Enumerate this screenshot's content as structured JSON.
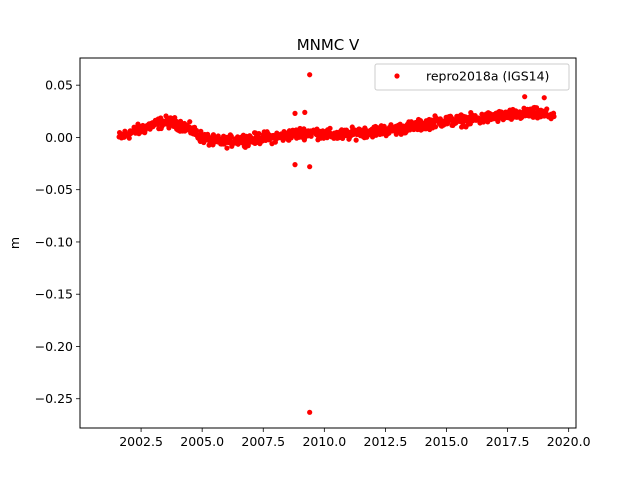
{
  "chart_data": {
    "type": "scatter",
    "title": "MNMC V",
    "xlabel": "",
    "ylabel": "m",
    "xlim": [
      2000.0,
      2020.3
    ],
    "ylim": [
      -0.278,
      0.076
    ],
    "x_ticks": [
      2002.5,
      2005.0,
      2007.5,
      2010.0,
      2012.5,
      2015.0,
      2017.5,
      2020.0
    ],
    "x_tick_labels": [
      "2002.5",
      "2005.0",
      "2007.5",
      "2010.0",
      "2012.5",
      "2015.0",
      "2017.5",
      "2020.0"
    ],
    "y_ticks": [
      0.05,
      0.0,
      -0.05,
      -0.1,
      -0.15,
      -0.2,
      -0.25
    ],
    "y_tick_labels": [
      "0.05",
      "0.00",
      "−0.05",
      "−0.10",
      "−0.15",
      "−0.20",
      "−0.25"
    ],
    "grid": false,
    "legend": {
      "position": "top-right",
      "entries": [
        "repro2018a (IGS14)"
      ]
    },
    "series": [
      {
        "name": "repro2018a (IGS14)",
        "color": "#ff0000",
        "trend": {
          "x": [
            2001.6,
            2002.0,
            2002.5,
            2003.0,
            2003.5,
            2004.0,
            2004.5,
            2005.0,
            2005.5,
            2006.0,
            2006.5,
            2007.0,
            2007.5,
            2008.0,
            2008.5,
            2009.0,
            2009.5,
            2010.0,
            2010.5,
            2011.0,
            2011.5,
            2012.0,
            2012.5,
            2013.0,
            2013.5,
            2014.0,
            2014.5,
            2015.0,
            2015.5,
            2016.0,
            2016.5,
            2017.0,
            2017.5,
            2018.0,
            2018.5,
            2019.0,
            2019.4
          ],
          "y": [
            0.0,
            0.004,
            0.008,
            0.012,
            0.015,
            0.013,
            0.008,
            0.0,
            -0.004,
            -0.004,
            -0.002,
            -0.002,
            0.0,
            0.0,
            0.002,
            0.004,
            0.005,
            0.003,
            0.002,
            0.003,
            0.005,
            0.006,
            0.007,
            0.008,
            0.01,
            0.012,
            0.015,
            0.016,
            0.016,
            0.017,
            0.018,
            0.02,
            0.021,
            0.022,
            0.023,
            0.022,
            0.021
          ],
          "scatter_amplitude": 0.006
        },
        "outliers": [
          {
            "x": 2008.8,
            "y": 0.023
          },
          {
            "x": 2009.2,
            "y": 0.024
          },
          {
            "x": 2009.4,
            "y": 0.06
          },
          {
            "x": 2008.8,
            "y": -0.026
          },
          {
            "x": 2009.4,
            "y": -0.028
          },
          {
            "x": 2009.4,
            "y": -0.263
          },
          {
            "x": 2018.2,
            "y": 0.039
          },
          {
            "x": 2019.0,
            "y": 0.038
          }
        ]
      }
    ]
  }
}
